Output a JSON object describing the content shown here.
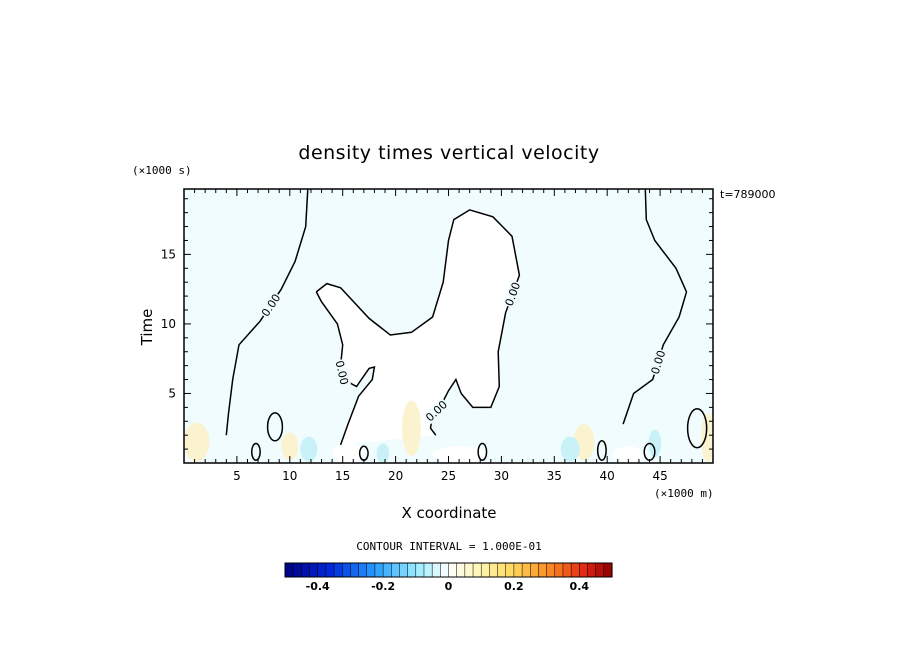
{
  "chart_data": {
    "type": "heatmap",
    "title": "density times vertical velocity",
    "xlabel": "X coordinate",
    "ylabel": "Time",
    "x_unit": "(×1000 m)",
    "y_unit": "(×1000 s)",
    "time_stamp": "t=789000",
    "xlim": [
      0,
      50
    ],
    "ylim": [
      0,
      19.7
    ],
    "x_ticks": [
      5,
      10,
      15,
      20,
      25,
      30,
      35,
      40,
      45
    ],
    "y_ticks": [
      5,
      10,
      15
    ],
    "contour_level_label": "0.00",
    "contour_interval_text": "CONTOUR INTERVAL = 1.000E-01",
    "colorbar": {
      "vmin": -0.5,
      "vmax": 0.5,
      "tick_values": [
        -0.4,
        -0.2,
        0,
        0.2,
        0.4
      ],
      "tick_labels": [
        "-0.4",
        "-0.2",
        "0",
        "0.2",
        "0.4"
      ]
    },
    "zero_contours": [
      {
        "name": "left",
        "points": [
          [
            11.7,
            19.7
          ],
          [
            11.5,
            17
          ],
          [
            10.5,
            14.5
          ],
          [
            9.2,
            12.5
          ],
          [
            7.2,
            10.2
          ],
          [
            5.2,
            8.5
          ],
          [
            4.6,
            6
          ],
          [
            4.2,
            3.5
          ],
          [
            4,
            2
          ]
        ]
      },
      {
        "name": "central",
        "points": [
          [
            12.5,
            12.3
          ],
          [
            13.5,
            12.9
          ],
          [
            14.8,
            12.6
          ],
          [
            17.5,
            10.4
          ],
          [
            19.5,
            9.2
          ],
          [
            21.5,
            9.4
          ],
          [
            23.5,
            10.5
          ],
          [
            24.5,
            13
          ],
          [
            25,
            16
          ],
          [
            25.5,
            17.5
          ],
          [
            27,
            18.2
          ],
          [
            29.2,
            17.7
          ],
          [
            31,
            16.3
          ],
          [
            31.7,
            13.5
          ],
          [
            30.4,
            10.8
          ],
          [
            29.7,
            8
          ],
          [
            29.8,
            5.5
          ],
          [
            29,
            4
          ],
          [
            27.3,
            4
          ],
          [
            26.2,
            5
          ],
          [
            25.7,
            6
          ],
          [
            25,
            5.2
          ],
          [
            24.2,
            4
          ],
          [
            23.5,
            3.5
          ],
          [
            23.3,
            2.5
          ],
          [
            23.8,
            2
          ]
        ]
      },
      {
        "name": "central-stem",
        "points": [
          [
            12.5,
            12.3
          ],
          [
            13,
            11.6
          ],
          [
            14.5,
            10
          ],
          [
            15,
            8.5
          ],
          [
            14.8,
            7
          ],
          [
            15.1,
            6
          ],
          [
            16.3,
            5.5
          ],
          [
            17.5,
            6.8
          ],
          [
            18,
            6.9
          ],
          [
            17.8,
            6
          ],
          [
            16.5,
            4.8
          ],
          [
            15.5,
            2.8
          ],
          [
            14.8,
            1.3
          ]
        ]
      },
      {
        "name": "right",
        "points": [
          [
            43.6,
            19.7
          ],
          [
            43.7,
            17.5
          ],
          [
            44.5,
            16
          ],
          [
            46.5,
            14
          ],
          [
            47.5,
            12.3
          ],
          [
            46.8,
            10.5
          ],
          [
            45.3,
            8.5
          ],
          [
            44.3,
            6
          ],
          [
            42.5,
            5
          ],
          [
            41.5,
            2.8
          ]
        ]
      }
    ],
    "contour_blobs": [
      {
        "cx": 8.6,
        "cy": 2.6,
        "rx": 0.7,
        "ry": 1.0
      },
      {
        "cx": 48.5,
        "cy": 2.5,
        "rx": 0.9,
        "ry": 1.4
      },
      {
        "cx": 6.8,
        "cy": 0.8,
        "rx": 0.4,
        "ry": 0.6
      },
      {
        "cx": 17.0,
        "cy": 0.7,
        "rx": 0.4,
        "ry": 0.5
      },
      {
        "cx": 28.2,
        "cy": 0.8,
        "rx": 0.4,
        "ry": 0.6
      },
      {
        "cx": 39.5,
        "cy": 0.9,
        "rx": 0.4,
        "ry": 0.7
      },
      {
        "cx": 44.0,
        "cy": 0.8,
        "rx": 0.5,
        "ry": 0.6
      }
    ],
    "fill_patches": [
      {
        "color": "#fbf3cf",
        "cx": 1.2,
        "cy": 1.5,
        "rx": 1.2,
        "ry": 1.4
      },
      {
        "color": "#fbf3cf",
        "cx": 21.5,
        "cy": 2.5,
        "rx": 0.9,
        "ry": 2.0
      },
      {
        "color": "#fbf3cf",
        "cx": 37.8,
        "cy": 1.5,
        "rx": 1.0,
        "ry": 1.3
      },
      {
        "color": "#fbf3cf",
        "cx": 49.5,
        "cy": 1.8,
        "rx": 0.6,
        "ry": 1.8
      },
      {
        "color": "#fbf3cf",
        "cx": 10.0,
        "cy": 1.2,
        "rx": 0.8,
        "ry": 1.0
      },
      {
        "color": "#c8f2f8",
        "cx": 11.8,
        "cy": 1.0,
        "rx": 0.8,
        "ry": 0.9
      },
      {
        "color": "#c8f2f8",
        "cx": 36.5,
        "cy": 1.0,
        "rx": 0.9,
        "ry": 0.9
      },
      {
        "color": "#c8f2f8",
        "cx": 44.5,
        "cy": 1.4,
        "rx": 0.6,
        "ry": 1.0
      },
      {
        "color": "#c8f2f8",
        "cx": 18.8,
        "cy": 0.7,
        "rx": 0.6,
        "ry": 0.7
      },
      {
        "color": "#ffffff",
        "cx": 15.5,
        "cy": 0.7,
        "rx": 1.5,
        "ry": 0.7
      },
      {
        "color": "#ffffff",
        "cx": 26.0,
        "cy": 0.6,
        "rx": 2.5,
        "ry": 0.6
      },
      {
        "color": "#ffffff",
        "cx": 42.0,
        "cy": 0.6,
        "rx": 1.5,
        "ry": 0.6
      }
    ],
    "field_color": "#f0fcfd",
    "interior_color": "#ffffff"
  }
}
